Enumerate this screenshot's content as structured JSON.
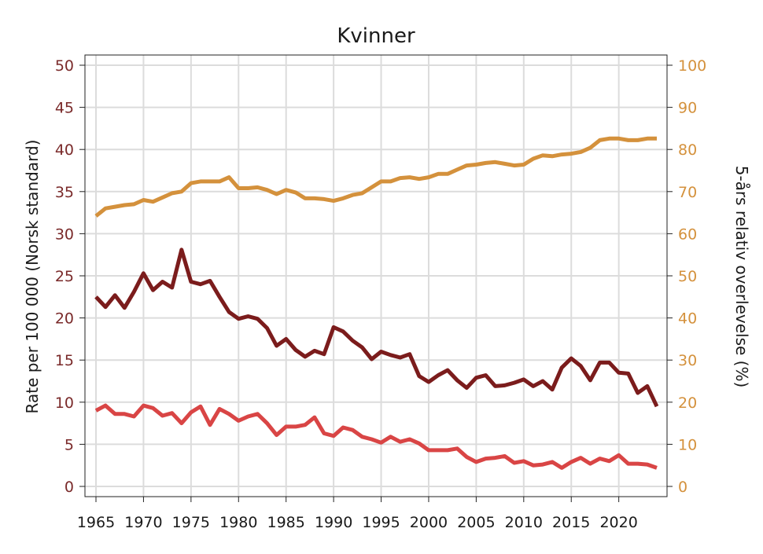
{
  "chart_data": {
    "type": "line",
    "title": "Kvinner",
    "ylabel": "Rate per 100 000 (Norsk standard)",
    "y2label": "5-års relativ overlevelse (%)",
    "xlim": [
      1965,
      2024
    ],
    "ylim": [
      0,
      50
    ],
    "y2lim": [
      0,
      100
    ],
    "xticks": [
      1965,
      1970,
      1975,
      1980,
      1985,
      1990,
      1995,
      2000,
      2005,
      2010,
      2015,
      2020
    ],
    "yticks": [
      0,
      5,
      10,
      15,
      20,
      25,
      30,
      35,
      40,
      45,
      50
    ],
    "y2ticks": [
      0,
      10,
      20,
      30,
      40,
      50,
      60,
      70,
      80,
      90,
      100
    ],
    "grid": true,
    "x": [
      1965,
      1966,
      1967,
      1968,
      1969,
      1970,
      1971,
      1972,
      1973,
      1974,
      1975,
      1976,
      1977,
      1978,
      1979,
      1980,
      1981,
      1982,
      1983,
      1984,
      1985,
      1986,
      1987,
      1988,
      1989,
      1990,
      1991,
      1992,
      1993,
      1994,
      1995,
      1996,
      1997,
      1998,
      1999,
      2000,
      2001,
      2002,
      2003,
      2004,
      2005,
      2006,
      2007,
      2008,
      2009,
      2010,
      2011,
      2012,
      2013,
      2014,
      2015,
      2016,
      2017,
      2018,
      2019,
      2020,
      2021,
      2022,
      2023,
      2024
    ],
    "series": [
      {
        "axis": "right",
        "color": "#d4913c",
        "values": [
          64.2,
          66.0,
          66.4,
          66.8,
          67.0,
          68.0,
          67.6,
          68.6,
          69.6,
          70.0,
          72.0,
          72.4,
          72.4,
          72.4,
          73.4,
          70.8,
          70.8,
          71.0,
          70.4,
          69.4,
          70.4,
          69.8,
          68.4,
          68.4,
          68.2,
          67.8,
          68.4,
          69.2,
          69.6,
          71.0,
          72.4,
          72.4,
          73.2,
          73.4,
          73.0,
          73.4,
          74.2,
          74.2,
          75.2,
          76.2,
          76.4,
          76.8,
          77.0,
          76.6,
          76.2,
          76.4,
          77.8,
          78.6,
          78.4,
          78.8,
          79.0,
          79.4,
          80.4,
          82.2,
          82.6,
          82.6,
          82.2,
          82.2,
          82.6,
          82.6
        ]
      },
      {
        "axis": "left",
        "color": "#7b1c1c",
        "values": [
          22.5,
          21.3,
          22.7,
          21.2,
          23.1,
          25.3,
          23.3,
          24.3,
          23.6,
          28.1,
          24.3,
          24.0,
          24.4,
          22.5,
          20.7,
          19.9,
          20.2,
          19.9,
          18.8,
          16.7,
          17.5,
          16.2,
          15.4,
          16.1,
          15.7,
          18.9,
          18.4,
          17.3,
          16.5,
          15.1,
          16.0,
          15.6,
          15.3,
          15.7,
          13.1,
          12.4,
          13.2,
          13.8,
          12.6,
          11.7,
          12.9,
          13.2,
          11.9,
          12.0,
          12.3,
          12.7,
          11.9,
          12.5,
          11.5,
          14.1,
          15.2,
          14.3,
          12.6,
          14.7,
          14.7,
          13.5,
          13.4,
          11.1,
          11.9,
          9.5
        ]
      },
      {
        "axis": "left",
        "color": "#d94545",
        "values": [
          9.0,
          9.6,
          8.6,
          8.6,
          8.3,
          9.6,
          9.3,
          8.4,
          8.7,
          7.5,
          8.8,
          9.5,
          7.3,
          9.2,
          8.6,
          7.8,
          8.3,
          8.6,
          7.5,
          6.1,
          7.1,
          7.1,
          7.3,
          8.2,
          6.3,
          6.0,
          7.0,
          6.7,
          5.9,
          5.6,
          5.2,
          5.9,
          5.3,
          5.6,
          5.1,
          4.3,
          4.3,
          4.3,
          4.5,
          3.5,
          2.9,
          3.3,
          3.4,
          3.6,
          2.8,
          3.0,
          2.5,
          2.6,
          2.9,
          2.2,
          2.9,
          3.4,
          2.7,
          3.3,
          3.0,
          3.7,
          2.7,
          2.7,
          2.6,
          2.2
        ]
      }
    ]
  }
}
